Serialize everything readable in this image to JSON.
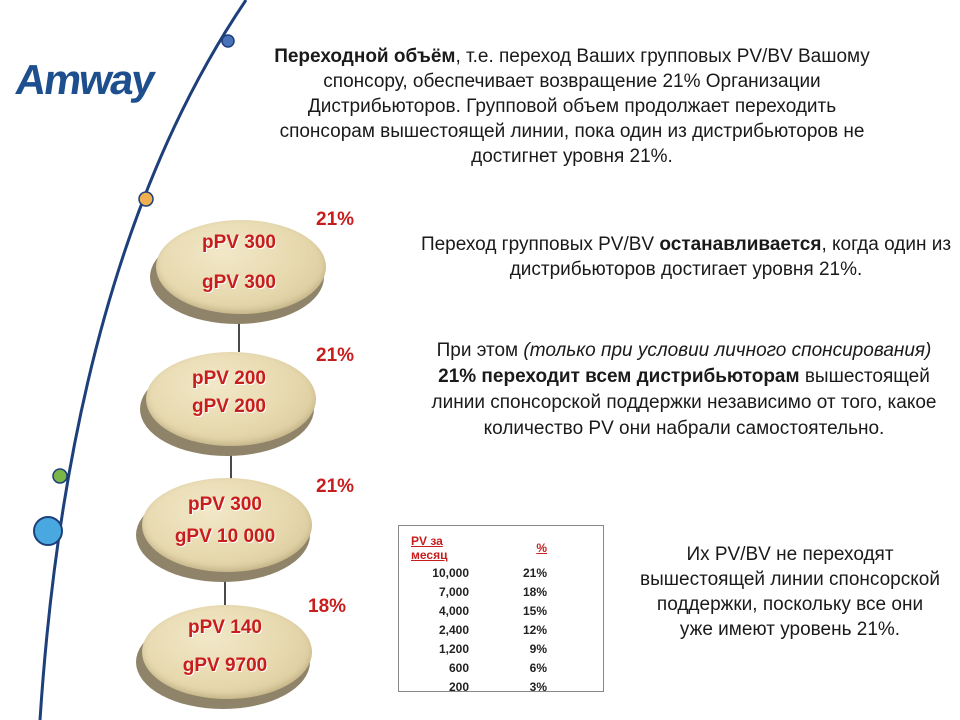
{
  "logo": {
    "text": "Amway"
  },
  "heading_paragraph": {
    "bold": "Переходной объём",
    "text": ", т.е. переход Ваших групповых PV/BV Вашому спонсору, обеспечивает возвращение 21% Организации Дистрибьюторов. Групповой объем продолжает переходить спонсорам вышестоящей линии, пока один из дистрибьюторов не достигнет уровня 21%."
  },
  "stop_paragraph": {
    "before": "Переход групповых PV/BV ",
    "bold": "останавливается",
    "after": ", когда один из дистрибьюторов достигает уровня 21%."
  },
  "condition_paragraph": {
    "before": "При этом ",
    "italic": "(только при условии личного спонсирования)",
    "bold": " 21% переходит всем дистрибьюторам",
    "after": " вышестоящей линии спонсорской поддержки независимо от того, какое количество PV они набрали самостоятельно."
  },
  "bottom_paragraph": {
    "text": "Их PV/BV не переходят вышестоящей линии спонсорской поддержки, поскольку все они уже имеют уровень 21%."
  },
  "levels": [
    {
      "ppv": "pPV 300",
      "gpv": "gPV 300",
      "percent": "21%"
    },
    {
      "ppv": "pPV 200",
      "gpv": "gPV 200",
      "percent": "21%"
    },
    {
      "ppv": "pPV 300",
      "gpv": "gPV 10 000",
      "percent": "21%"
    },
    {
      "ppv": "pPV 140",
      "gpv": "gPV 9700",
      "percent": "18%"
    }
  ],
  "table": {
    "headers": [
      "PV за месяц",
      "%"
    ],
    "rows": [
      [
        "10,000",
        "21%"
      ],
      [
        "7,000",
        "18%"
      ],
      [
        "4,000",
        "15%"
      ],
      [
        "2,400",
        "12%"
      ],
      [
        "1,200",
        "9%"
      ],
      [
        "600",
        "6%"
      ],
      [
        "200",
        "3%"
      ]
    ]
  },
  "colors": {
    "brand": "#1d4f8f",
    "accent_red": "#c81d1d",
    "arc": "#1d3f7a",
    "dot_blue": "#4a72b8",
    "dot_orange": "#f0b050",
    "dot_green": "#7ab648",
    "dot_cyan": "#4aa8e0"
  }
}
